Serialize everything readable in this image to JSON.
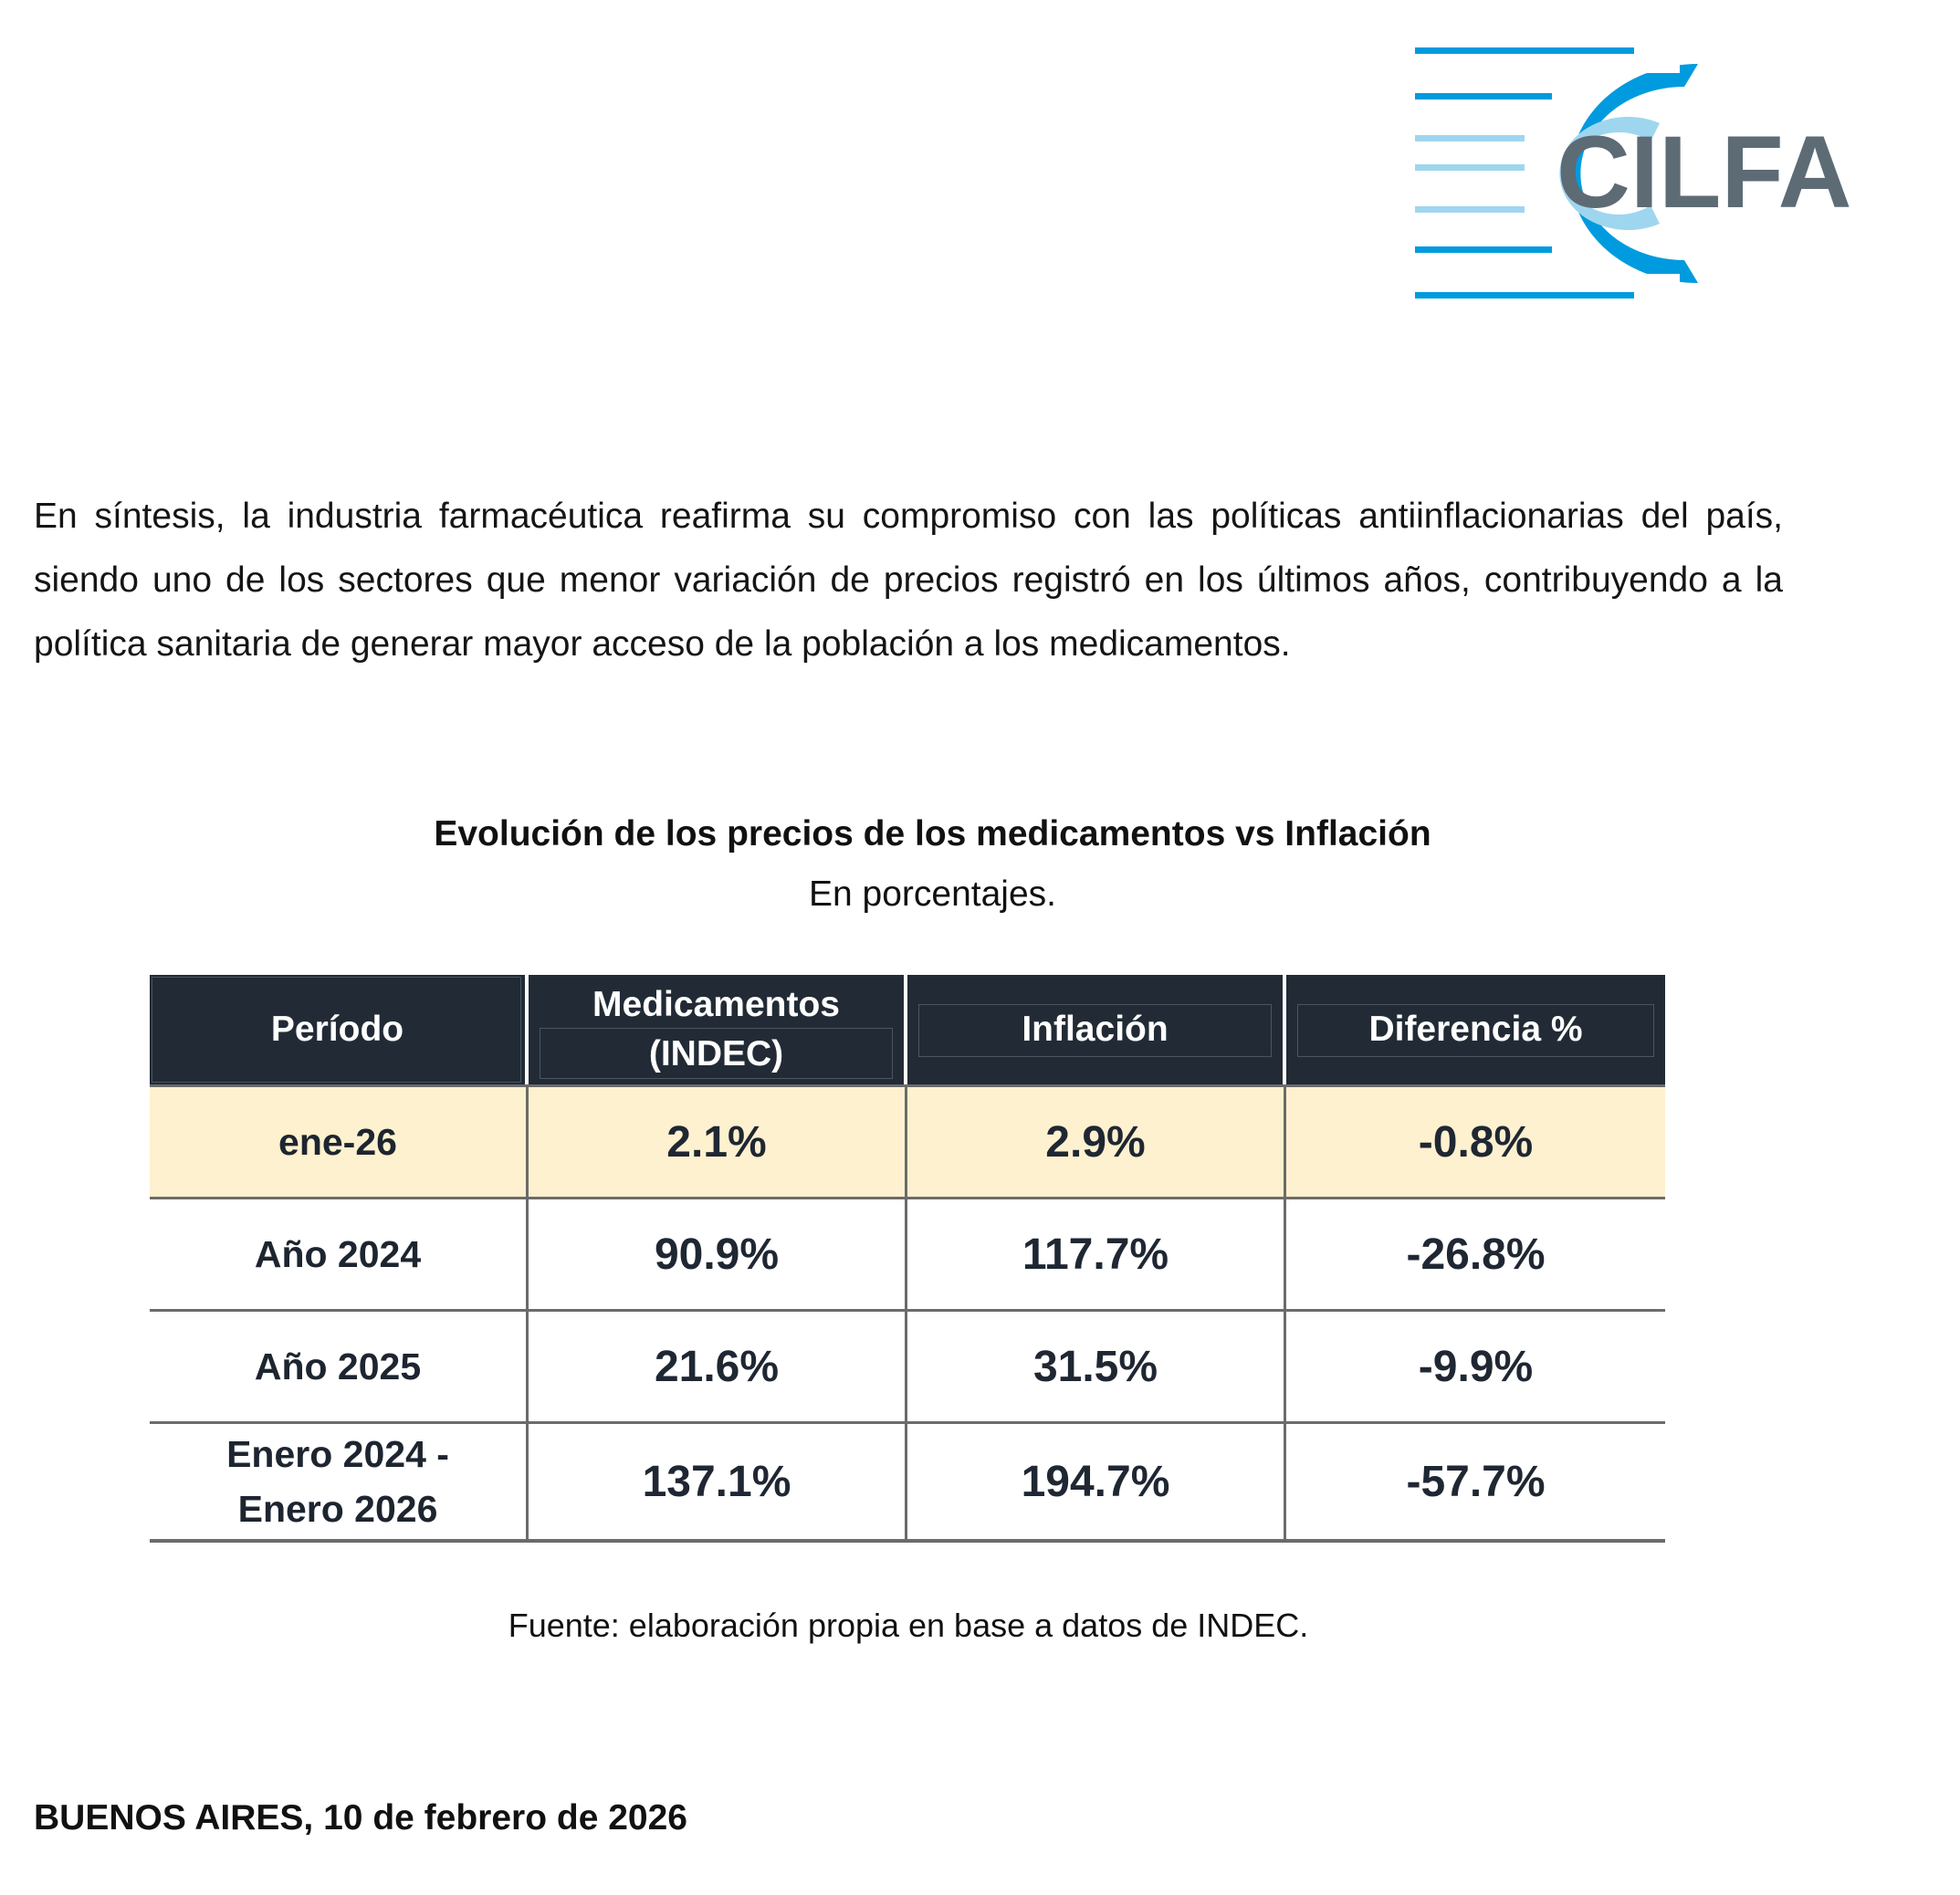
{
  "logo": {
    "text": "CILFA",
    "colors": {
      "dark_blue": "#009bde",
      "light_blue": "#9fd6ef",
      "gray": "#5d6b75"
    }
  },
  "intro": {
    "text": "En síntesis, la industria farmacéutica reafirma su compromiso con las políticas antiinflacionarias del país, siendo uno de los sectores que menor variación de precios registró en los últimos años, contribuyendo a la política sanitaria de generar mayor acceso de la población a los medicamentos."
  },
  "table": {
    "title": "Evolución de los precios de los medicamentos vs Inflación",
    "subtitle": "En porcentajes.",
    "headers": {
      "period": "Período",
      "medicines_line1": "Medicamentos",
      "medicines_line2": "(INDEC)",
      "inflation": "Inflación",
      "difference": "Diferencia %"
    },
    "rows": [
      {
        "period_line1": "ene-26",
        "period_line2": "",
        "medicines": "2.1%",
        "inflation": "2.9%",
        "difference": "-0.8%"
      },
      {
        "period_line1": "Año 2024",
        "period_line2": "",
        "medicines": "90.9%",
        "inflation": "117.7%",
        "difference": "-26.8%"
      },
      {
        "period_line1": "Año 2025",
        "period_line2": "",
        "medicines": "21.6%",
        "inflation": "31.5%",
        "difference": "-9.9%"
      },
      {
        "period_line1": "Enero 2024 -",
        "period_line2": "Enero 2026",
        "medicines": "137.1%",
        "inflation": "194.7%",
        "difference": "-57.7%"
      }
    ],
    "colors": {
      "header_bg": "#222b35",
      "highlight_bg": "#fef1cf"
    }
  },
  "source": "Fuente: elaboración propia en base a datos de INDEC.",
  "footer": {
    "date_line": "BUENOS AIRES, 10 de febrero de 2026"
  }
}
